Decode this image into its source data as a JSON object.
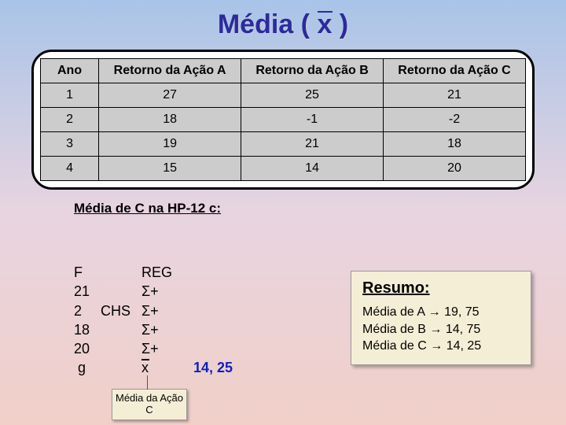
{
  "title_prefix": "Média ( ",
  "title_var": "x",
  "title_suffix": " )",
  "table": {
    "columns": [
      "Ano",
      "Retorno da Ação A",
      "Retorno da Ação B",
      "Retorno da Ação C"
    ],
    "rows": [
      [
        "1",
        "27",
        "25",
        "21"
      ],
      [
        "2",
        "18",
        "-1",
        "-2"
      ],
      [
        "3",
        "19",
        "21",
        "18"
      ],
      [
        "4",
        "15",
        "14",
        "20"
      ]
    ],
    "header_bg": "#cccccc",
    "cell_bg": "#cccccc",
    "border_color": "#000000"
  },
  "hp_title": "Média de C na HP-12 c:",
  "hp_lines": [
    {
      "c1": "F",
      "c2": "",
      "c3": "REG"
    },
    {
      "c1": "21",
      "c2": "",
      "c3": "Σ+"
    },
    {
      "c1": "2",
      "c2": "CHS",
      "c3": "Σ+"
    },
    {
      "c1": "18",
      "c2": "",
      "c3": "Σ+"
    },
    {
      "c1": "20",
      "c2": "",
      "c3": "Σ+"
    },
    {
      "c1": " g",
      "c2": "",
      "c3": "x̄",
      "result": "14, 25"
    }
  ],
  "callout": "Média da Ação C",
  "resumo": {
    "heading": "Resumo:",
    "lines": [
      "Média de A → 19, 75",
      "Média de B → 14, 75",
      "Média de C → 14, 25"
    ]
  },
  "colors": {
    "title": "#2a2aa0",
    "result": "#1020c0",
    "note_bg": "#f5eed6"
  }
}
